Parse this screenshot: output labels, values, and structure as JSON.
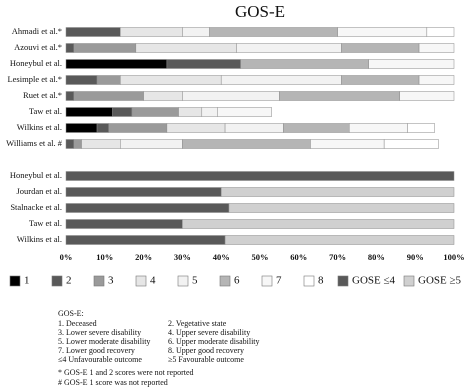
{
  "chart_data": {
    "type": "bar",
    "orientation": "horizontal",
    "stacked": true,
    "title": "GOS-E",
    "categories": [
      "Ahmadi et al.*",
      "Azouvi et al.*",
      "Honeybul et al.",
      "Lesimple et al.*",
      "Ruet et al.*",
      "Taw et al.",
      "Wilkins et al.",
      "Williams et al. #",
      null,
      "Honeybul et al.",
      "Jourdan et al.",
      "Stalnacke et al.",
      "Taw et al.",
      "Wilkins et al."
    ],
    "series": [
      {
        "name": "1",
        "color": "#000000",
        "values": [
          0,
          0,
          26,
          0,
          0,
          12,
          8,
          0,
          null,
          null,
          null,
          null,
          null,
          null
        ]
      },
      {
        "name": "2",
        "color": "#595959",
        "values": [
          14,
          2,
          19,
          8,
          2,
          5,
          3,
          2,
          null,
          null,
          null,
          null,
          null,
          null
        ]
      },
      {
        "name": "3",
        "color": "#9a9a9a",
        "values": [
          0,
          16,
          0,
          6,
          18,
          12,
          15,
          2,
          null,
          null,
          null,
          null,
          null,
          null
        ]
      },
      {
        "name": "4",
        "color": "#e6e6e6",
        "values": [
          16,
          26,
          0,
          26,
          10,
          6,
          15,
          10,
          null,
          null,
          null,
          null,
          null,
          null
        ]
      },
      {
        "name": "5",
        "color": "#f2f2f2",
        "values": [
          7,
          27,
          0,
          31,
          25,
          4,
          15,
          16,
          null,
          null,
          null,
          null,
          null,
          null
        ]
      },
      {
        "name": "6",
        "color": "#b5b5b5",
        "values": [
          33,
          20,
          33,
          20,
          31,
          0,
          17,
          33,
          null,
          null,
          null,
          null,
          null,
          null
        ]
      },
      {
        "name": "7",
        "color": "#f7f7f7",
        "values": [
          23,
          9,
          22,
          9,
          14,
          14,
          15,
          19,
          null,
          null,
          null,
          null,
          null,
          null
        ]
      },
      {
        "name": "8",
        "color": "#ffffff",
        "values": [
          7,
          0,
          0,
          0,
          0,
          0,
          7,
          14,
          null,
          null,
          null,
          null,
          null,
          null
        ]
      },
      {
        "name": "GOSE ≤4",
        "color": "#595959",
        "values": [
          null,
          null,
          null,
          null,
          null,
          null,
          null,
          null,
          null,
          100,
          40,
          42,
          30,
          41
        ]
      },
      {
        "name": "GOSE ≥5",
        "color": "#d0d0d0",
        "values": [
          null,
          null,
          null,
          null,
          null,
          null,
          null,
          null,
          null,
          0,
          60,
          58,
          70,
          59
        ]
      }
    ],
    "xlim": [
      0,
      100
    ],
    "xticks": [
      {
        "value": 0,
        "label": "0%"
      },
      {
        "value": 10,
        "label": "10%"
      },
      {
        "value": 20,
        "label": "20%"
      },
      {
        "value": 30,
        "label": "30%"
      },
      {
        "value": 40,
        "label": "40%"
      },
      {
        "value": 50,
        "label": "50%"
      },
      {
        "value": 60,
        "label": "60%"
      },
      {
        "value": 70,
        "label": "70%"
      },
      {
        "value": 80,
        "label": "80%"
      },
      {
        "value": 90,
        "label": "90%"
      },
      {
        "value": 100,
        "label": "100%"
      }
    ],
    "grid": false,
    "legend": "bottom"
  },
  "notes": {
    "heading": "GOS-E:",
    "items": [
      [
        "1. Deceased",
        "2. Vegetative state"
      ],
      [
        "3. Lower severe disability",
        "4. Upper severe disability"
      ],
      [
        "5. Lower moderate disability",
        "6. Upper moderate disability"
      ],
      [
        "7. Lower good recovery",
        "8. Upper good recovery"
      ],
      [
        "≤4 Unfavourable outcome",
        "≥5 Favourable outcome"
      ]
    ],
    "footnotes": [
      "* GOS-E 1 and 2 scores were not reported",
      "# GOS-E 1 score was not reported"
    ]
  }
}
